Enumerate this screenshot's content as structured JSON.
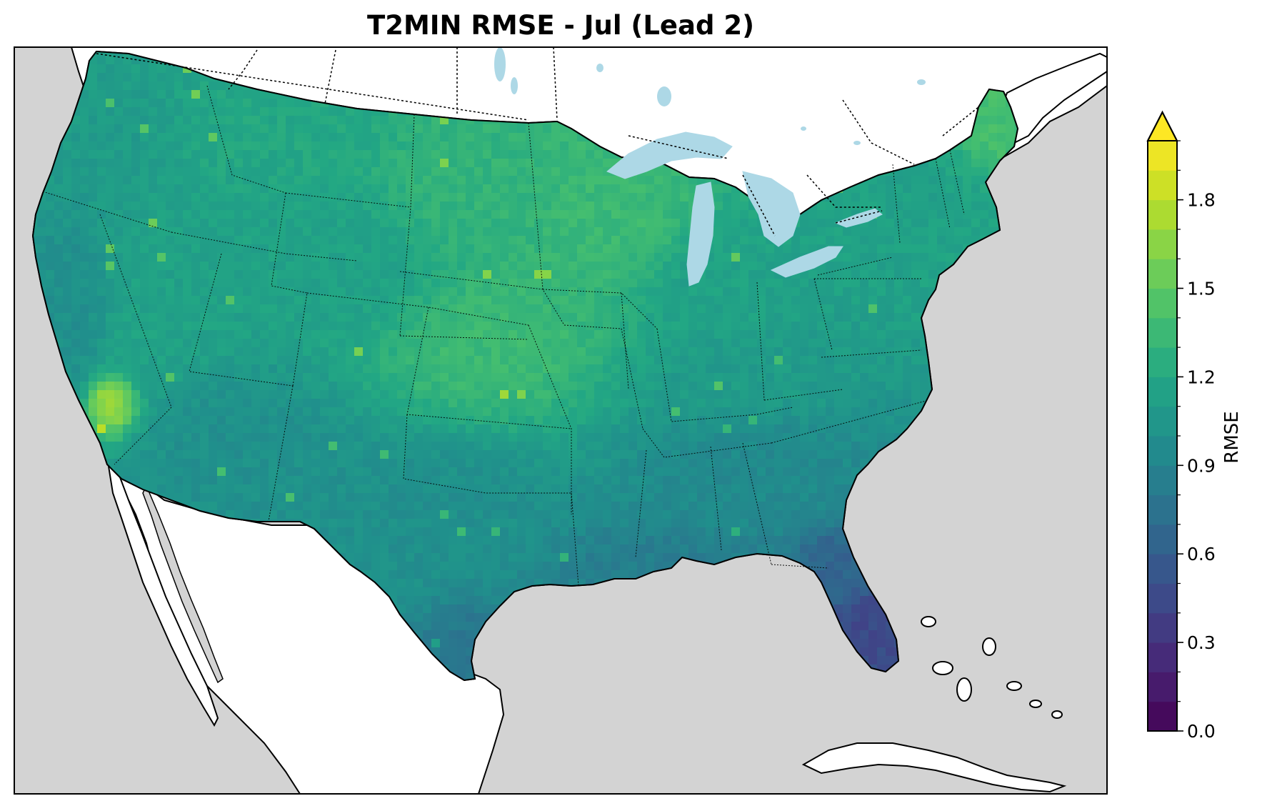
{
  "title": "T2MIN RMSE - Jul (Lead 2)",
  "colorbar": {
    "label": "RMSE",
    "min": 0.0,
    "max": 2.0,
    "extend": "max",
    "colormap": "viridis",
    "levels": 20,
    "ticks": [
      "0.0",
      "0.3",
      "0.6",
      "0.9",
      "1.2",
      "1.5",
      "1.8"
    ],
    "tick_values": [
      0.0,
      0.3,
      0.6,
      0.9,
      1.2,
      1.5,
      1.8
    ]
  },
  "map": {
    "region": "Contiguous United States",
    "ocean_color": "#d3d3d3",
    "land_color": "#ffffff",
    "lake_color": "#add8e6"
  },
  "chart_data": {
    "type": "heatmap",
    "title": "T2MIN RMSE - Jul (Lead 2)",
    "colorbar_label": "RMSE",
    "vmin": 0.0,
    "vmax": 2.0,
    "regional_values": [
      {
        "region": "Pacific Northwest",
        "value": 1.1
      },
      {
        "region": "California coast",
        "value": 1.0
      },
      {
        "region": "Southern California mountains",
        "value": 1.7
      },
      {
        "region": "Great Basin",
        "value": 1.15
      },
      {
        "region": "Desert Southwest",
        "value": 1.0
      },
      {
        "region": "Northern Rockies / Montana",
        "value": 1.2
      },
      {
        "region": "Colorado / Wyoming",
        "value": 1.15
      },
      {
        "region": "Northern Plains",
        "value": 1.3
      },
      {
        "region": "Central Plains / Kansas",
        "value": 1.35
      },
      {
        "region": "Upper Midwest / Minnesota",
        "value": 1.35
      },
      {
        "region": "Great Lakes",
        "value": 1.15
      },
      {
        "region": "Ohio Valley",
        "value": 1.1
      },
      {
        "region": "Northeast",
        "value": 1.15
      },
      {
        "region": "Northern Maine",
        "value": 1.4
      },
      {
        "region": "Texas",
        "value": 1.0
      },
      {
        "region": "South Texas coast",
        "value": 0.8
      },
      {
        "region": "Southeast",
        "value": 0.95
      },
      {
        "region": "Gulf Coast",
        "value": 0.85
      },
      {
        "region": "Northern Florida",
        "value": 0.65
      },
      {
        "region": "Southern Florida",
        "value": 0.45
      }
    ]
  }
}
